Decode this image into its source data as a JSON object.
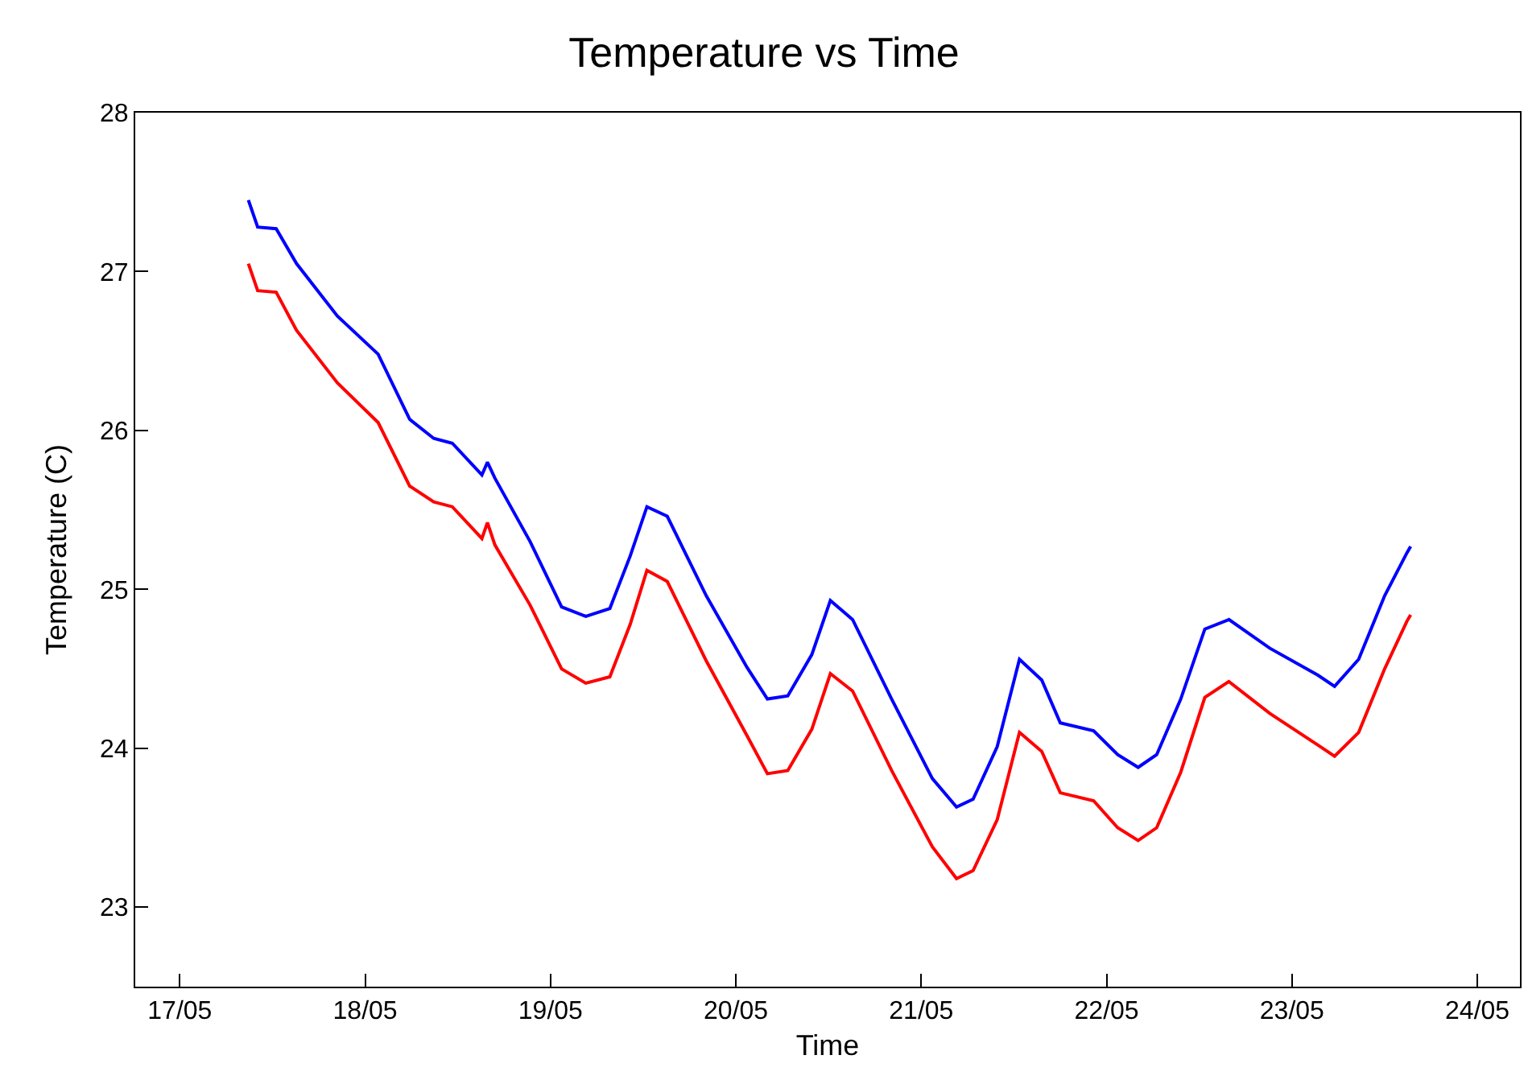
{
  "chart_data": {
    "type": "line",
    "title": "Temperature vs Time",
    "xlabel": "Time",
    "ylabel": "Temperature (C)",
    "x": [
      "--05-17T08:53",
      "--05-17T10:05",
      "--05-17T12:29",
      "--05-17T15:07",
      "--05-17T20:24",
      "--05-18T01:41",
      "--05-18T05:46",
      "--05-18T08:53",
      "--05-18T11:17",
      "--05-18T15:07",
      "--05-18T15:50",
      "--05-18T16:48",
      "--05-18T21:22",
      "--05-19T01:26",
      "--05-19T04:34",
      "--05-19T07:41",
      "--05-19T10:19",
      "--05-19T12:29",
      "--05-19T15:07",
      "--05-19T20:10",
      "--05-20T01:26",
      "--05-20T04:05",
      "--05-20T06:43",
      "--05-20T09:50",
      "--05-20T12:14",
      "--05-20T15:07",
      "--05-20T20:10",
      "--05-21T01:26",
      "--05-21T04:34",
      "--05-21T06:43",
      "--05-21T09:50",
      "--05-21T12:43",
      "--05-21T15:36",
      "--05-21T18:00",
      "--05-21T22:19",
      "--05-22T01:26",
      "--05-22T04:05",
      "--05-22T06:29",
      "--05-22T09:36",
      "--05-22T12:43",
      "--05-22T15:50",
      "--05-22T21:07",
      "--05-23T03:22",
      "--05-23T05:31",
      "--05-23T08:38",
      "--05-23T12:00",
      "--05-23T14:53",
      "--05-23T15:22"
    ],
    "series": [
      {
        "color": "#0000ff",
        "values": [
          27.45,
          27.28,
          27.27,
          27.05,
          26.72,
          26.48,
          26.07,
          25.95,
          25.92,
          25.72,
          25.8,
          25.7,
          25.3,
          24.89,
          24.83,
          24.88,
          25.21,
          25.52,
          25.46,
          24.96,
          24.51,
          24.31,
          24.33,
          24.59,
          24.93,
          24.81,
          24.31,
          23.81,
          23.63,
          23.68,
          24.01,
          24.56,
          24.43,
          24.16,
          24.11,
          23.96,
          23.88,
          23.96,
          24.31,
          24.75,
          24.81,
          24.63,
          24.46,
          24.39,
          24.56,
          24.96,
          25.23,
          25.27
        ]
      },
      {
        "color": "#ff0000",
        "values": [
          27.05,
          26.88,
          26.87,
          26.63,
          26.3,
          26.05,
          25.65,
          25.55,
          25.52,
          25.32,
          25.42,
          25.28,
          24.9,
          24.5,
          24.41,
          24.45,
          24.78,
          25.12,
          25.05,
          24.55,
          24.08,
          23.84,
          23.86,
          24.12,
          24.47,
          24.36,
          23.86,
          23.38,
          23.18,
          23.23,
          23.55,
          24.1,
          23.98,
          23.72,
          23.67,
          23.5,
          23.42,
          23.5,
          23.85,
          24.32,
          24.42,
          24.22,
          24.02,
          23.95,
          24.1,
          24.5,
          24.8,
          24.84
        ]
      }
    ],
    "xlim": [
      "--05-16T18:14",
      "--05-24T05:31"
    ],
    "xticks": [
      {
        "value": "--05-17",
        "label": "17/05"
      },
      {
        "value": "--05-18",
        "label": "18/05"
      },
      {
        "value": "--05-19",
        "label": "19/05"
      },
      {
        "value": "--05-20",
        "label": "20/05"
      },
      {
        "value": "--05-21",
        "label": "21/05"
      },
      {
        "value": "--05-22",
        "label": "22/05"
      },
      {
        "value": "--05-23",
        "label": "23/05"
      },
      {
        "value": "--05-24",
        "label": "24/05"
      }
    ],
    "ylim": [
      22.5,
      28
    ],
    "yticks": [
      23,
      24,
      25,
      26,
      27,
      28
    ],
    "marker": "none",
    "line_style": "solid"
  }
}
